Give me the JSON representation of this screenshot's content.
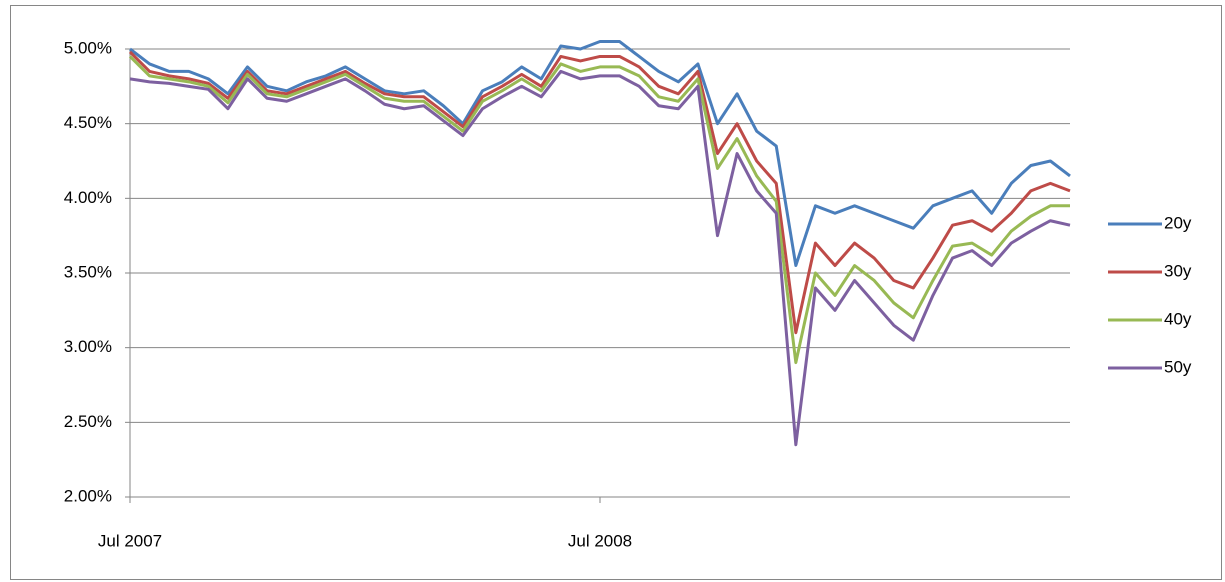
{
  "chart_data": {
    "type": "line",
    "categories": [
      "Jul 2007",
      null,
      null,
      null,
      null,
      null,
      null,
      null,
      null,
      null,
      null,
      null,
      null,
      null,
      null,
      null,
      null,
      null,
      null,
      null,
      null,
      null,
      null,
      null,
      "Jul 2008",
      null,
      null,
      null,
      null,
      null,
      null,
      null,
      null,
      null,
      null,
      null,
      null,
      null,
      null,
      null,
      null,
      null,
      null,
      null,
      null,
      null,
      null,
      null,
      null
    ],
    "ylim": [
      2.0,
      5.0
    ],
    "yticks": [
      {
        "value": 2.0,
        "label": "2.00%"
      },
      {
        "value": 2.5,
        "label": "2.50%"
      },
      {
        "value": 3.0,
        "label": "3.00%"
      },
      {
        "value": 3.5,
        "label": "3.50%"
      },
      {
        "value": 4.0,
        "label": "4.00%"
      },
      {
        "value": 4.5,
        "label": "4.50%"
      },
      {
        "value": 5.0,
        "label": "5.00%"
      }
    ],
    "grid": true,
    "legend": "right",
    "series": [
      {
        "name": "20y",
        "color": "#4a7ebb",
        "values": [
          5.0,
          4.9,
          4.85,
          4.85,
          4.8,
          4.7,
          4.88,
          4.75,
          4.72,
          4.78,
          4.82,
          4.88,
          4.8,
          4.72,
          4.7,
          4.72,
          4.62,
          4.5,
          4.72,
          4.78,
          4.88,
          4.8,
          5.02,
          5.0,
          5.05,
          5.05,
          4.95,
          4.85,
          4.78,
          4.9,
          4.5,
          4.7,
          4.45,
          4.35,
          3.55,
          3.95,
          3.9,
          3.95,
          3.9,
          3.85,
          3.8,
          3.95,
          4.0,
          4.05,
          3.9,
          4.1,
          4.22,
          4.25,
          4.15
        ]
      },
      {
        "name": "30y",
        "color": "#be4b48",
        "values": [
          4.98,
          4.85,
          4.82,
          4.8,
          4.77,
          4.67,
          4.85,
          4.72,
          4.7,
          4.75,
          4.8,
          4.85,
          4.77,
          4.7,
          4.68,
          4.68,
          4.58,
          4.48,
          4.68,
          4.75,
          4.83,
          4.75,
          4.95,
          4.92,
          4.95,
          4.95,
          4.88,
          4.75,
          4.7,
          4.85,
          4.3,
          4.5,
          4.25,
          4.1,
          3.1,
          3.7,
          3.55,
          3.7,
          3.6,
          3.45,
          3.4,
          3.6,
          3.82,
          3.85,
          3.78,
          3.9,
          4.05,
          4.1,
          4.05
        ]
      },
      {
        "name": "40y",
        "color": "#98b954",
        "values": [
          4.95,
          4.82,
          4.8,
          4.78,
          4.75,
          4.64,
          4.83,
          4.7,
          4.68,
          4.73,
          4.78,
          4.83,
          4.75,
          4.67,
          4.65,
          4.65,
          4.55,
          4.45,
          4.65,
          4.72,
          4.8,
          4.72,
          4.9,
          4.85,
          4.88,
          4.88,
          4.82,
          4.68,
          4.65,
          4.8,
          4.2,
          4.4,
          4.15,
          3.98,
          2.9,
          3.5,
          3.35,
          3.55,
          3.45,
          3.3,
          3.2,
          3.45,
          3.68,
          3.7,
          3.62,
          3.78,
          3.88,
          3.95,
          3.95
        ]
      },
      {
        "name": "50y",
        "color": "#7d60a0",
        "values": [
          4.8,
          4.78,
          4.77,
          4.75,
          4.73,
          4.6,
          4.8,
          4.67,
          4.65,
          4.7,
          4.75,
          4.8,
          4.72,
          4.63,
          4.6,
          4.62,
          4.52,
          4.42,
          4.6,
          4.68,
          4.75,
          4.68,
          4.85,
          4.8,
          4.82,
          4.82,
          4.75,
          4.62,
          4.6,
          4.75,
          3.75,
          4.3,
          4.05,
          3.9,
          2.35,
          3.4,
          3.25,
          3.45,
          3.3,
          3.15,
          3.05,
          3.35,
          3.6,
          3.65,
          3.55,
          3.7,
          3.78,
          3.85,
          3.82
        ]
      }
    ]
  }
}
